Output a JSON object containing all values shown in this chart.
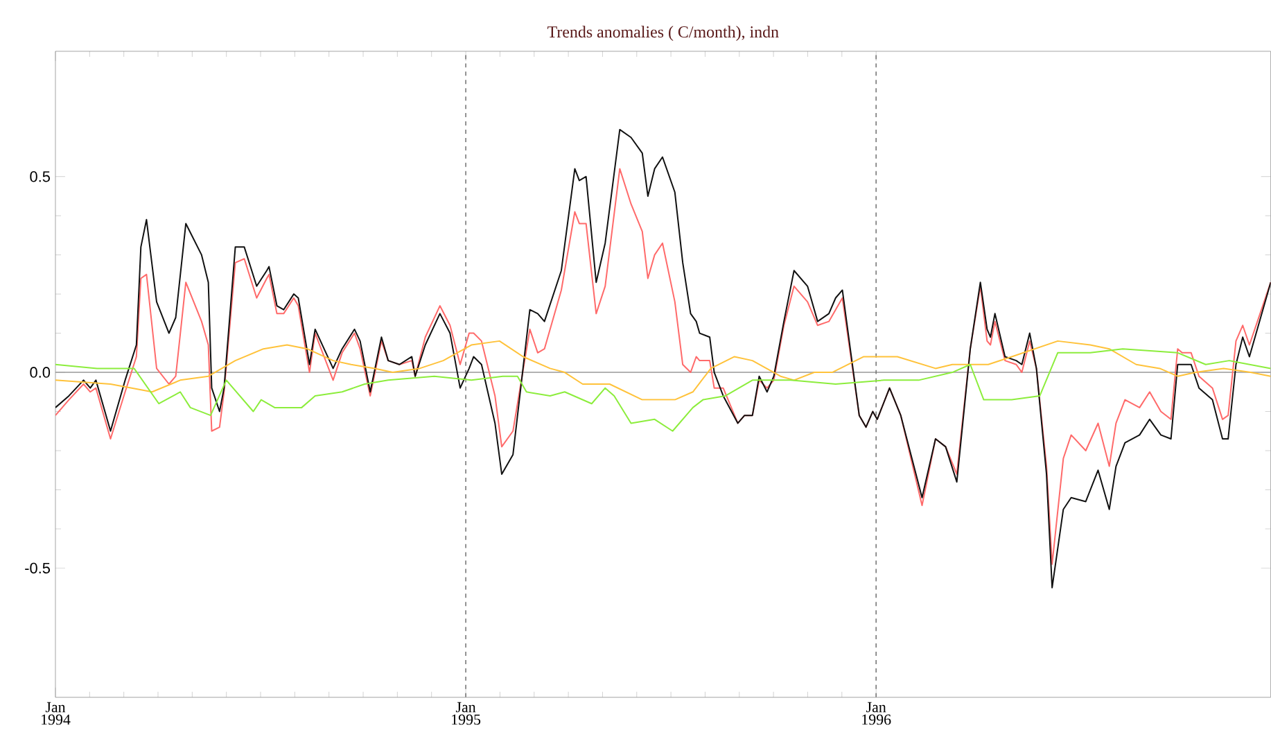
{
  "chart_data": {
    "type": "line",
    "title": "Trends anomalies ( C/month), indn",
    "x": [
      "1994-01-01",
      "1994-01-13",
      "1994-01-26",
      "1994-02-01",
      "1994-02-06",
      "1994-02-19",
      "1994-03-04",
      "1994-03-14",
      "1994-03-18",
      "1994-03-23",
      "1994-04-01",
      "1994-04-12",
      "1994-04-18",
      "1994-04-27",
      "1994-05-11",
      "1994-05-17",
      "1994-05-20",
      "1994-05-27",
      "1994-05-31",
      "1994-06-10",
      "1994-06-18",
      "1994-06-29",
      "1994-07-08",
      "1994-07-10",
      "1994-07-17",
      "1994-07-23",
      "1994-08-01",
      "1994-08-05",
      "1994-08-15",
      "1994-08-20",
      "1994-09-05",
      "1994-09-13",
      "1994-09-24",
      "1994-09-29",
      "1994-10-08",
      "1994-10-18",
      "1994-10-24",
      "1994-11-03",
      "1994-11-14",
      "1994-11-17",
      "1994-11-26",
      "1994-12-09",
      "1994-12-18",
      "1994-12-27",
      "1995-01-04",
      "1995-01-08",
      "1995-01-15",
      "1995-01-27",
      "1995-02-02",
      "1995-02-12",
      "1995-02-27",
      "1995-03-06",
      "1995-03-12",
      "1995-03-27",
      "1995-04-08",
      "1995-04-12",
      "1995-04-18",
      "1995-04-27",
      "1995-05-05",
      "1995-05-18",
      "1995-05-28",
      "1995-06-07",
      "1995-06-12",
      "1995-06-18",
      "1995-06-25",
      "1995-07-06",
      "1995-07-13",
      "1995-07-20",
      "1995-07-25",
      "1995-07-28",
      "1995-08-06",
      "1995-08-10",
      "1995-08-18",
      "1995-08-31",
      "1995-09-06",
      "1995-09-13",
      "1995-09-19",
      "1995-09-26",
      "1995-10-02",
      "1995-10-11",
      "1995-10-20",
      "1995-11-01",
      "1995-11-10",
      "1995-11-20",
      "1995-11-26",
      "1995-12-02",
      "1995-12-17",
      "1995-12-23",
      "1995-12-29",
      "1996-01-02",
      "1996-01-13",
      "1996-01-23",
      "1996-02-11",
      "1996-02-23",
      "1996-03-03",
      "1996-03-13",
      "1996-03-25",
      "1996-04-03",
      "1996-04-09",
      "1996-04-12",
      "1996-04-16",
      "1996-04-25",
      "1996-05-05",
      "1996-05-10",
      "1996-05-17",
      "1996-05-23",
      "1996-06-01",
      "1996-06-06",
      "1996-06-16",
      "1996-06-23",
      "1996-07-06",
      "1996-07-17",
      "1996-07-27",
      "1996-08-02",
      "1996-08-10",
      "1996-08-23",
      "1996-09-01",
      "1996-09-11",
      "1996-09-20",
      "1996-09-26",
      "1996-09-30",
      "1996-10-08",
      "1996-10-15",
      "1996-10-27",
      "1996-11-05",
      "1996-11-10",
      "1996-11-17",
      "1996-11-23",
      "1996-11-29",
      "1996-12-18"
    ],
    "series": [
      {
        "color": "#ff6a6a",
        "values": [
          -0.11,
          -0.07,
          -0.03,
          -0.05,
          -0.04,
          -0.17,
          -0.05,
          0.04,
          0.24,
          0.25,
          0.01,
          -0.03,
          -0.01,
          0.23,
          0.13,
          0.07,
          -0.15,
          -0.14,
          -0.05,
          0.28,
          0.29,
          0.19,
          0.24,
          0.25,
          0.15,
          0.15,
          0.19,
          0.17,
          0.0,
          0.1,
          -0.02,
          0.05,
          0.1,
          0.06,
          -0.06,
          0.08,
          0.03,
          0.02,
          0.03,
          -0.01,
          0.09,
          0.17,
          0.12,
          0.02,
          0.1,
          0.1,
          0.08,
          -0.06,
          -0.19,
          -0.15,
          0.11,
          0.05,
          0.06,
          0.21,
          0.41,
          0.38,
          0.38,
          0.15,
          0.22,
          0.52,
          0.43,
          0.36,
          0.24,
          0.3,
          0.33,
          0.18,
          0.02,
          0.0,
          0.04,
          0.03,
          0.03,
          -0.04,
          -0.04,
          -0.13,
          -0.11,
          -0.11,
          -0.02,
          -0.04,
          -0.02,
          0.12,
          0.22,
          0.18,
          0.12,
          0.13,
          0.16,
          0.19,
          -0.11,
          -0.14,
          -0.1,
          -0.12,
          -0.04,
          -0.11,
          -0.34,
          -0.17,
          -0.19,
          -0.26,
          0.06,
          0.22,
          0.08,
          0.07,
          0.13,
          0.03,
          0.02,
          0.0,
          0.08,
          0.01,
          -0.24,
          -0.49,
          -0.22,
          -0.16,
          -0.2,
          -0.13,
          -0.24,
          -0.13,
          -0.07,
          -0.09,
          -0.05,
          -0.1,
          -0.12,
          0.06,
          0.05,
          0.05,
          -0.01,
          -0.04,
          -0.12,
          -0.11,
          0.08,
          0.12,
          0.07,
          0.23
        ]
      },
      {
        "color": "#111111",
        "values": [
          -0.09,
          -0.06,
          -0.02,
          -0.04,
          -0.02,
          -0.15,
          -0.02,
          0.07,
          0.32,
          0.39,
          0.18,
          0.1,
          0.14,
          0.38,
          0.3,
          0.23,
          -0.04,
          -0.1,
          -0.04,
          0.32,
          0.32,
          0.22,
          0.26,
          0.27,
          0.17,
          0.16,
          0.2,
          0.19,
          0.02,
          0.11,
          0.01,
          0.06,
          0.11,
          0.08,
          -0.05,
          0.09,
          0.03,
          0.02,
          0.04,
          -0.01,
          0.07,
          0.15,
          0.1,
          -0.04,
          0.01,
          0.04,
          0.02,
          -0.13,
          -0.26,
          -0.21,
          0.16,
          0.15,
          0.13,
          0.26,
          0.52,
          0.49,
          0.5,
          0.23,
          0.33,
          0.62,
          0.6,
          0.56,
          0.45,
          0.52,
          0.55,
          0.46,
          0.28,
          0.15,
          0.13,
          0.1,
          0.09,
          0.0,
          -0.06,
          -0.13,
          -0.11,
          -0.11,
          -0.01,
          -0.05,
          -0.01,
          0.13,
          0.26,
          0.22,
          0.13,
          0.15,
          0.19,
          0.21,
          -0.11,
          -0.14,
          -0.1,
          -0.12,
          -0.04,
          -0.11,
          -0.32,
          -0.17,
          -0.19,
          -0.28,
          0.06,
          0.23,
          0.11,
          0.09,
          0.15,
          0.04,
          0.03,
          0.02,
          0.1,
          0.01,
          -0.26,
          -0.55,
          -0.35,
          -0.32,
          -0.33,
          -0.25,
          -0.35,
          -0.24,
          -0.18,
          -0.16,
          -0.12,
          -0.16,
          -0.17,
          0.02,
          0.02,
          0.02,
          -0.04,
          -0.07,
          -0.17,
          -0.17,
          0.02,
          0.09,
          0.04,
          0.23
        ]
      },
      {
        "color": "#ffc23a",
        "x": [
          "1994-01-01",
          "1994-02-19",
          "1994-03-28",
          "1994-04-22",
          "1994-05-17",
          "1994-06-10",
          "1994-07-05",
          "1994-07-26",
          "1994-08-13",
          "1994-09-05",
          "1994-09-21",
          "1994-10-12",
          "1994-10-28",
          "1994-11-21",
          "1994-12-12",
          "1995-01-06",
          "1995-01-31",
          "1995-02-21",
          "1995-03-17",
          "1995-03-30",
          "1995-04-15",
          "1995-05-09",
          "1995-06-07",
          "1995-07-06",
          "1995-07-22",
          "1995-08-07",
          "1995-08-28",
          "1995-09-13",
          "1995-10-08",
          "1995-10-20",
          "1995-11-07",
          "1995-11-23",
          "1995-12-21",
          "1996-01-20",
          "1996-02-23",
          "1996-03-09",
          "1996-04-10",
          "1996-05-01",
          "1996-06-11",
          "1996-07-10",
          "1996-07-27",
          "1996-08-20",
          "1996-09-10",
          "1996-09-26",
          "1996-10-12",
          "1996-11-06",
          "1996-11-30",
          "1996-12-18"
        ],
        "values": [
          -0.02,
          -0.03,
          -0.05,
          -0.02,
          -0.01,
          0.03,
          0.06,
          0.07,
          0.06,
          0.03,
          0.02,
          0.01,
          0.0,
          0.01,
          0.03,
          0.07,
          0.08,
          0.04,
          0.01,
          0.0,
          -0.03,
          -0.03,
          -0.07,
          -0.07,
          -0.05,
          0.01,
          0.04,
          0.03,
          -0.01,
          -0.02,
          0.0,
          0.0,
          0.04,
          0.04,
          0.01,
          0.02,
          0.02,
          0.04,
          0.08,
          0.07,
          0.06,
          0.02,
          0.01,
          -0.01,
          0.0,
          0.01,
          0.0,
          -0.01
        ]
      },
      {
        "color": "#8ced3c",
        "x": [
          "1994-01-01",
          "1994-02-07",
          "1994-03-12",
          "1994-04-03",
          "1994-04-22",
          "1994-05-01",
          "1994-05-19",
          "1994-06-02",
          "1994-06-26",
          "1994-07-03",
          "1994-07-15",
          "1994-08-08",
          "1994-08-20",
          "1994-09-13",
          "1994-10-03",
          "1994-10-24",
          "1994-12-04",
          "1995-01-06",
          "1995-02-03",
          "1995-02-16",
          "1995-02-24",
          "1995-03-17",
          "1995-03-30",
          "1995-04-23",
          "1995-05-05",
          "1995-05-13",
          "1995-05-28",
          "1995-06-18",
          "1995-07-04",
          "1995-07-22",
          "1995-07-31",
          "1995-08-20",
          "1995-09-13",
          "1995-10-17",
          "1995-11-26",
          "1996-01-08",
          "1996-02-08",
          "1996-03-09",
          "1996-03-25",
          "1996-04-06",
          "1996-05-01",
          "1996-05-26",
          "1996-06-11",
          "1996-07-10",
          "1996-08-08",
          "1996-09-26",
          "1996-10-21",
          "1996-11-11",
          "1996-12-18"
        ],
        "values": [
          0.02,
          0.01,
          0.01,
          -0.08,
          -0.05,
          -0.09,
          -0.11,
          -0.02,
          -0.1,
          -0.07,
          -0.09,
          -0.09,
          -0.06,
          -0.05,
          -0.03,
          -0.02,
          -0.01,
          -0.02,
          -0.01,
          -0.01,
          -0.05,
          -0.06,
          -0.05,
          -0.08,
          -0.04,
          -0.06,
          -0.13,
          -0.12,
          -0.15,
          -0.09,
          -0.07,
          -0.06,
          -0.02,
          -0.02,
          -0.03,
          -0.02,
          -0.02,
          0.0,
          0.02,
          -0.07,
          -0.07,
          -0.06,
          0.05,
          0.05,
          0.06,
          0.05,
          0.02,
          0.03,
          0.01
        ]
      }
    ],
    "xlim": [
      "1994-01-01",
      "1996-12-18"
    ],
    "xticks": [
      {
        "value": "1994-01-01",
        "label": "Jan 1994"
      },
      {
        "value": "1995-01-01",
        "label": "Jan 1995"
      },
      {
        "value": "1996-01-01",
        "label": "Jan 1996"
      }
    ],
    "ylim": [
      -0.83,
      0.82
    ],
    "yticks": [
      -0.5,
      {
        "value": 0,
        "label": "0.0"
      },
      0.5
    ],
    "ref_lines": [
      {
        "axis": "y",
        "value": 0,
        "color": "#999999",
        "line_style": "solid"
      },
      {
        "axis": "x",
        "value": "1995-01-01",
        "color": "#777777",
        "line_style": "dashed"
      },
      {
        "axis": "x",
        "value": "1996-01-01",
        "color": "#777777",
        "line_style": "dashed"
      }
    ],
    "marker": "none",
    "line_style": "solid"
  }
}
